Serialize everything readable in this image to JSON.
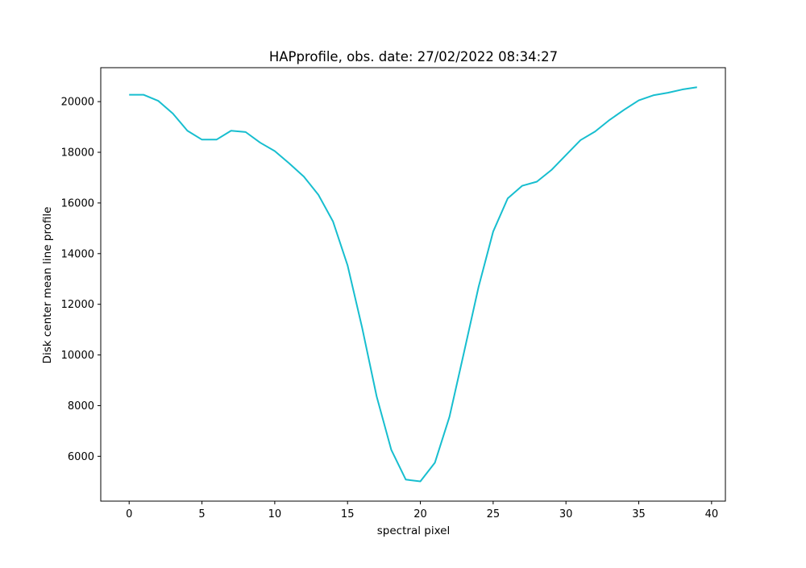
{
  "chart_data": {
    "type": "line",
    "title": "HAPprofile, obs. date: 27/02/2022 08:34:27",
    "xlabel": "spectral pixel",
    "ylabel": "Disk center mean line profile",
    "xlim": [
      -1.95,
      40.95
    ],
    "ylim": [
      4230,
      21340
    ],
    "xticks": [
      0,
      5,
      10,
      15,
      20,
      25,
      30,
      35,
      40
    ],
    "xtick_labels": [
      "0",
      "5",
      "10",
      "15",
      "20",
      "25",
      "30",
      "35",
      "40"
    ],
    "yticks": [
      6000,
      8000,
      10000,
      12000,
      14000,
      16000,
      18000,
      20000
    ],
    "ytick_labels": [
      "6000",
      "8000",
      "10000",
      "12000",
      "14000",
      "16000",
      "18000",
      "20000"
    ],
    "grid": false,
    "legend": "none",
    "series": [
      {
        "color": "#17becf",
        "x": [
          0,
          1,
          2,
          3,
          4,
          5,
          6,
          7,
          8,
          9,
          10,
          11,
          12,
          13,
          14,
          15,
          16,
          17,
          18,
          19,
          20,
          21,
          22,
          23,
          24,
          25,
          26,
          27,
          28,
          29,
          30,
          31,
          32,
          33,
          34,
          35,
          36,
          37,
          38,
          39
        ],
        "y": [
          20270,
          20270,
          20030,
          19530,
          18850,
          18500,
          18500,
          18850,
          18800,
          18380,
          18050,
          17560,
          17040,
          16320,
          15270,
          13540,
          11080,
          8360,
          6260,
          5080,
          5010,
          5750,
          7560,
          10110,
          12690,
          14870,
          16180,
          16680,
          16840,
          17300,
          17890,
          18480,
          18820,
          19280,
          19680,
          20050,
          20250,
          20350,
          20480,
          20570
        ]
      }
    ]
  }
}
